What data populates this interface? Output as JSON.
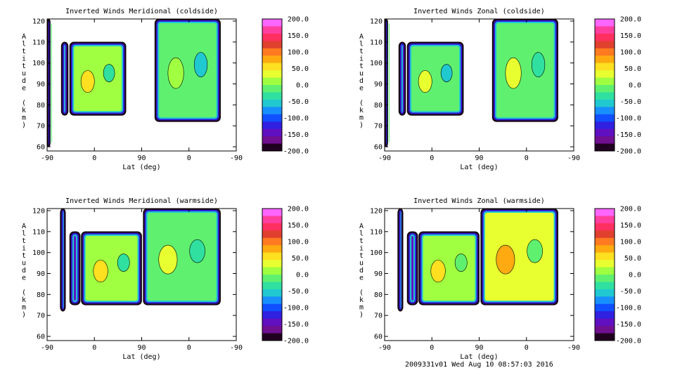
{
  "footer": "2009331v01 Wed Aug 10 08:57:03 2016",
  "colorbar": {
    "labels": [
      "200.0",
      "150.0",
      "100.0",
      "50.0",
      "0.0",
      "-50.0",
      "-100.0",
      "-150.0",
      "-200.0"
    ],
    "colors": [
      "#ff66ff",
      "#ff3fa0",
      "#ff3060",
      "#e0402e",
      "#ff7a20",
      "#ffaa10",
      "#ffe020",
      "#e8ff30",
      "#a0ff40",
      "#60f070",
      "#30e0a0",
      "#20c8d0",
      "#1890ff",
      "#1050ff",
      "#3020e0",
      "#6010c0",
      "#701090",
      "#200020"
    ]
  },
  "chart_data": [
    {
      "type": "heatmap",
      "title": "Inverted Winds Meridional (coldside)",
      "xlabel": "Lat (deg)",
      "ylabel": "Altitude (km)",
      "x_tick_labels": [
        "-90",
        "0",
        "90",
        "0",
        "-90"
      ],
      "y_ticks": [
        60,
        70,
        80,
        90,
        100,
        110,
        120
      ],
      "ylim": [
        58,
        121
      ],
      "zlim": [
        -200,
        200
      ],
      "data_bands": [
        {
          "x_from": -90,
          "x_to": -84,
          "alt_from": 60,
          "alt_to": 121,
          "mean": 0
        },
        {
          "x_from": -63,
          "x_to": -50,
          "alt_from": 75,
          "alt_to": 110,
          "mean": -150
        },
        {
          "x_from": -47,
          "x_to": 60,
          "alt_from": 75,
          "alt_to": 110,
          "mean": 10
        },
        {
          "x_from": 115,
          "x_to": 240,
          "alt_from": 72,
          "alt_to": 121,
          "mean": -20
        }
      ]
    },
    {
      "type": "heatmap",
      "title": "Inverted Winds Zonal (coldside)",
      "xlabel": "Lat (deg)",
      "ylabel": "Altitude (km)",
      "x_tick_labels": [
        "-90",
        "0",
        "90",
        "0",
        "-90"
      ],
      "y_ticks": [
        60,
        70,
        80,
        90,
        100,
        110,
        120
      ],
      "ylim": [
        58,
        121
      ],
      "zlim": [
        -200,
        200
      ],
      "data_bands": [
        {
          "x_from": -90,
          "x_to": -84,
          "alt_from": 60,
          "alt_to": 121,
          "mean": 0
        },
        {
          "x_from": -63,
          "x_to": -50,
          "alt_from": 75,
          "alt_to": 110,
          "mean": -150
        },
        {
          "x_from": -47,
          "x_to": 60,
          "alt_from": 75,
          "alt_to": 110,
          "mean": -10
        },
        {
          "x_from": 115,
          "x_to": 240,
          "alt_from": 72,
          "alt_to": 121,
          "mean": 0
        }
      ]
    },
    {
      "type": "heatmap",
      "title": "Inverted Winds Meridional (warmside)",
      "xlabel": "Lat (deg)",
      "ylabel": "Altitude (km)",
      "x_tick_labels": [
        "-90",
        "0",
        "90",
        "0",
        "-90"
      ],
      "y_ticks": [
        60,
        70,
        80,
        90,
        100,
        110,
        120
      ],
      "ylim": [
        58,
        121
      ],
      "zlim": [
        -200,
        200
      ],
      "data_bands": [
        {
          "x_from": -65,
          "x_to": -55,
          "alt_from": 72,
          "alt_to": 121,
          "mean": -200
        },
        {
          "x_from": -47,
          "x_to": -27,
          "alt_from": 75,
          "alt_to": 110,
          "mean": -150
        },
        {
          "x_from": -25,
          "x_to": 90,
          "alt_from": 75,
          "alt_to": 110,
          "mean": 10
        },
        {
          "x_from": 93,
          "x_to": 240,
          "alt_from": 75,
          "alt_to": 121,
          "mean": 0
        }
      ]
    },
    {
      "type": "heatmap",
      "title": "Inverted Winds Zonal (warmside)",
      "xlabel": "Lat (deg)",
      "ylabel": "Altitude (km)",
      "x_tick_labels": [
        "-90",
        "0",
        "90",
        "0",
        "-90"
      ],
      "y_ticks": [
        60,
        70,
        80,
        90,
        100,
        110,
        120
      ],
      "ylim": [
        58,
        121
      ],
      "zlim": [
        -200,
        200
      ],
      "data_bands": [
        {
          "x_from": -65,
          "x_to": -55,
          "alt_from": 72,
          "alt_to": 121,
          "mean": -200
        },
        {
          "x_from": -47,
          "x_to": -27,
          "alt_from": 75,
          "alt_to": 110,
          "mean": -150
        },
        {
          "x_from": -25,
          "x_to": 90,
          "alt_from": 75,
          "alt_to": 110,
          "mean": 20
        },
        {
          "x_from": 93,
          "x_to": 240,
          "alt_from": 75,
          "alt_to": 121,
          "mean": 40
        }
      ]
    }
  ]
}
